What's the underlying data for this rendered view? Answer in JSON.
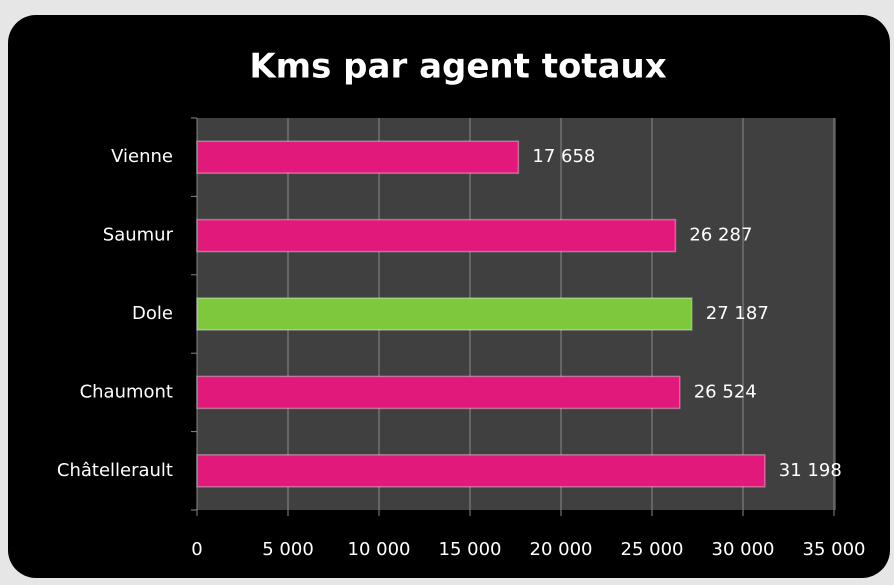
{
  "chart_data": {
    "type": "hbar",
    "title": "Kms par agent totaux",
    "categories": [
      "Vienne",
      "Saumur",
      "Dole",
      "Chaumont",
      "Châtellerault"
    ],
    "values": [
      17658,
      26287,
      27187,
      26524,
      31198
    ],
    "value_labels": [
      "17 658",
      "26 287",
      "27 187",
      "26 524",
      "31 198"
    ],
    "colors": [
      "#e0197a",
      "#e0197a",
      "#7dc83c",
      "#e0197a",
      "#e0197a"
    ],
    "xlim": [
      0,
      35000
    ],
    "xticks": [
      0,
      {
        "value": 5000,
        "label": "5 000"
      },
      {
        "value": 10000,
        "label": "10 000"
      },
      {
        "value": 15000,
        "label": "15 000"
      },
      {
        "value": 20000,
        "label": "20 000"
      },
      {
        "value": 25000,
        "label": "25 000"
      },
      {
        "value": 30000,
        "label": "30 000"
      },
      {
        "value": 35000,
        "label": "35 000"
      }
    ],
    "grid": true
  }
}
